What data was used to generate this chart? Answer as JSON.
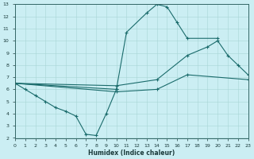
{
  "xlabel": "Humidex (Indice chaleur)",
  "background_color": "#cbeef3",
  "grid_color": "#a8d5d5",
  "line_color": "#1a6b6b",
  "xlim": [
    0,
    23
  ],
  "ylim": [
    2,
    13
  ],
  "xticks": [
    0,
    1,
    2,
    3,
    4,
    5,
    6,
    7,
    8,
    9,
    10,
    11,
    12,
    13,
    14,
    15,
    16,
    17,
    18,
    19,
    20,
    21,
    22,
    23
  ],
  "yticks": [
    2,
    3,
    4,
    5,
    6,
    7,
    8,
    9,
    10,
    11,
    12,
    13
  ],
  "line_spike_x": [
    0,
    1,
    2,
    3,
    4,
    5,
    6,
    7,
    8,
    9,
    10
  ],
  "line_spike_y": [
    6.5,
    6.0,
    5.5,
    5.0,
    4.5,
    4.2,
    3.8,
    2.3,
    2.2,
    4.0,
    6.0
  ],
  "line_peak_x": [
    0,
    10,
    11,
    13,
    14,
    15,
    16,
    17,
    20
  ],
  "line_peak_y": [
    6.5,
    6.0,
    10.7,
    12.3,
    13.0,
    12.8,
    11.5,
    10.2,
    10.2
  ],
  "line_upper_x": [
    0,
    10,
    14,
    17,
    19,
    20,
    21,
    22,
    23
  ],
  "line_upper_y": [
    6.5,
    6.3,
    6.8,
    8.8,
    9.5,
    10.0,
    8.8,
    8.0,
    7.2
  ],
  "line_lower_x": [
    0,
    10,
    14,
    17,
    23
  ],
  "line_lower_y": [
    6.5,
    5.8,
    6.0,
    7.2,
    6.8
  ]
}
